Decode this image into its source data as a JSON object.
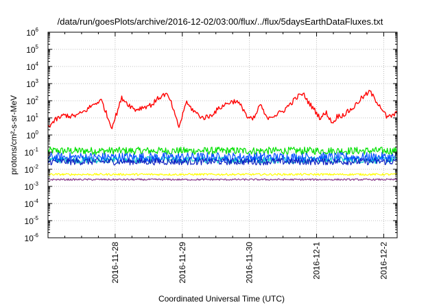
{
  "chart_data": {
    "type": "line",
    "title": "/data/run/goesPlots/archive/2016-12-02/03:00/flux/../flux/5daysEarthDataFluxes.txt",
    "xlabel": "Coordinated Universal Time (UTC)",
    "ylabel": "protons/cm²-s-sr-MeV",
    "yscale": "log",
    "ylim_exponent": [
      -6,
      6
    ],
    "y_tick_exponents": [
      -6,
      -5,
      -4,
      -3,
      -2,
      -1,
      0,
      1,
      2,
      3,
      4,
      5,
      6
    ],
    "xlim_days": [
      0,
      5.2
    ],
    "x_ticks": [
      {
        "day": 1,
        "label": "2016-11-28"
      },
      {
        "day": 2,
        "label": "2016-11-29"
      },
      {
        "day": 3,
        "label": "2016-11-30"
      },
      {
        "day": 4,
        "label": "2016-12-1"
      },
      {
        "day": 5,
        "label": "2016-12-2"
      }
    ],
    "grid": true,
    "series": [
      {
        "color": "#ff0000",
        "style": "trend",
        "points": [
          [
            0,
            3
          ],
          [
            0.12,
            8
          ],
          [
            0.25,
            15
          ],
          [
            0.35,
            12
          ],
          [
            0.45,
            15
          ],
          [
            0.55,
            25
          ],
          [
            0.65,
            50
          ],
          [
            0.75,
            90
          ],
          [
            0.8,
            100
          ],
          [
            0.85,
            30
          ],
          [
            0.9,
            8
          ],
          [
            0.95,
            3
          ],
          [
            1.0,
            10
          ],
          [
            1.1,
            150
          ],
          [
            1.2,
            60
          ],
          [
            1.3,
            30
          ],
          [
            1.4,
            40
          ],
          [
            1.55,
            60
          ],
          [
            1.65,
            150
          ],
          [
            1.75,
            250
          ],
          [
            1.8,
            150
          ],
          [
            1.85,
            50
          ],
          [
            1.9,
            10
          ],
          [
            1.95,
            3
          ],
          [
            2.0,
            12
          ],
          [
            2.05,
            80
          ],
          [
            2.1,
            50
          ],
          [
            2.2,
            20
          ],
          [
            2.3,
            10
          ],
          [
            2.4,
            12
          ],
          [
            2.5,
            25
          ],
          [
            2.6,
            50
          ],
          [
            2.7,
            80
          ],
          [
            2.8,
            100
          ],
          [
            2.85,
            60
          ],
          [
            2.92,
            30
          ],
          [
            2.97,
            10
          ],
          [
            3.05,
            8
          ],
          [
            3.1,
            15
          ],
          [
            3.15,
            60
          ],
          [
            3.2,
            30
          ],
          [
            3.25,
            10
          ],
          [
            3.3,
            12
          ],
          [
            3.4,
            15
          ],
          [
            3.5,
            25
          ],
          [
            3.6,
            60
          ],
          [
            3.7,
            150
          ],
          [
            3.78,
            250
          ],
          [
            3.82,
            200
          ],
          [
            3.88,
            80
          ],
          [
            4.0,
            20
          ],
          [
            4.05,
            10
          ],
          [
            4.15,
            20
          ],
          [
            4.2,
            8
          ],
          [
            4.25,
            5
          ],
          [
            4.3,
            12
          ],
          [
            4.4,
            15
          ],
          [
            4.55,
            40
          ],
          [
            4.65,
            120
          ],
          [
            4.75,
            250
          ],
          [
            4.8,
            350
          ],
          [
            4.85,
            150
          ],
          [
            4.95,
            50
          ],
          [
            5.05,
            10
          ],
          [
            5.15,
            15
          ],
          [
            5.2,
            20
          ]
        ],
        "noise_dex": 0.15
      },
      {
        "color": "#00e000",
        "style": "band",
        "level": 0.12,
        "noise_dex": 0.22
      },
      {
        "color": "#00c8c8",
        "style": "band",
        "level": 0.035,
        "noise_dex": 0.2
      },
      {
        "color": "#0050ff",
        "style": "band",
        "level": 0.05,
        "noise_dex": 0.28
      },
      {
        "color": "#1020c0",
        "style": "band",
        "level": 0.028,
        "noise_dex": 0.2
      },
      {
        "color": "#ffff00",
        "style": "band",
        "level": 0.005,
        "noise_dex": 0.06
      },
      {
        "color": "#8a3a8a",
        "style": "band",
        "level": 0.0025,
        "noise_dex": 0.05
      }
    ]
  }
}
